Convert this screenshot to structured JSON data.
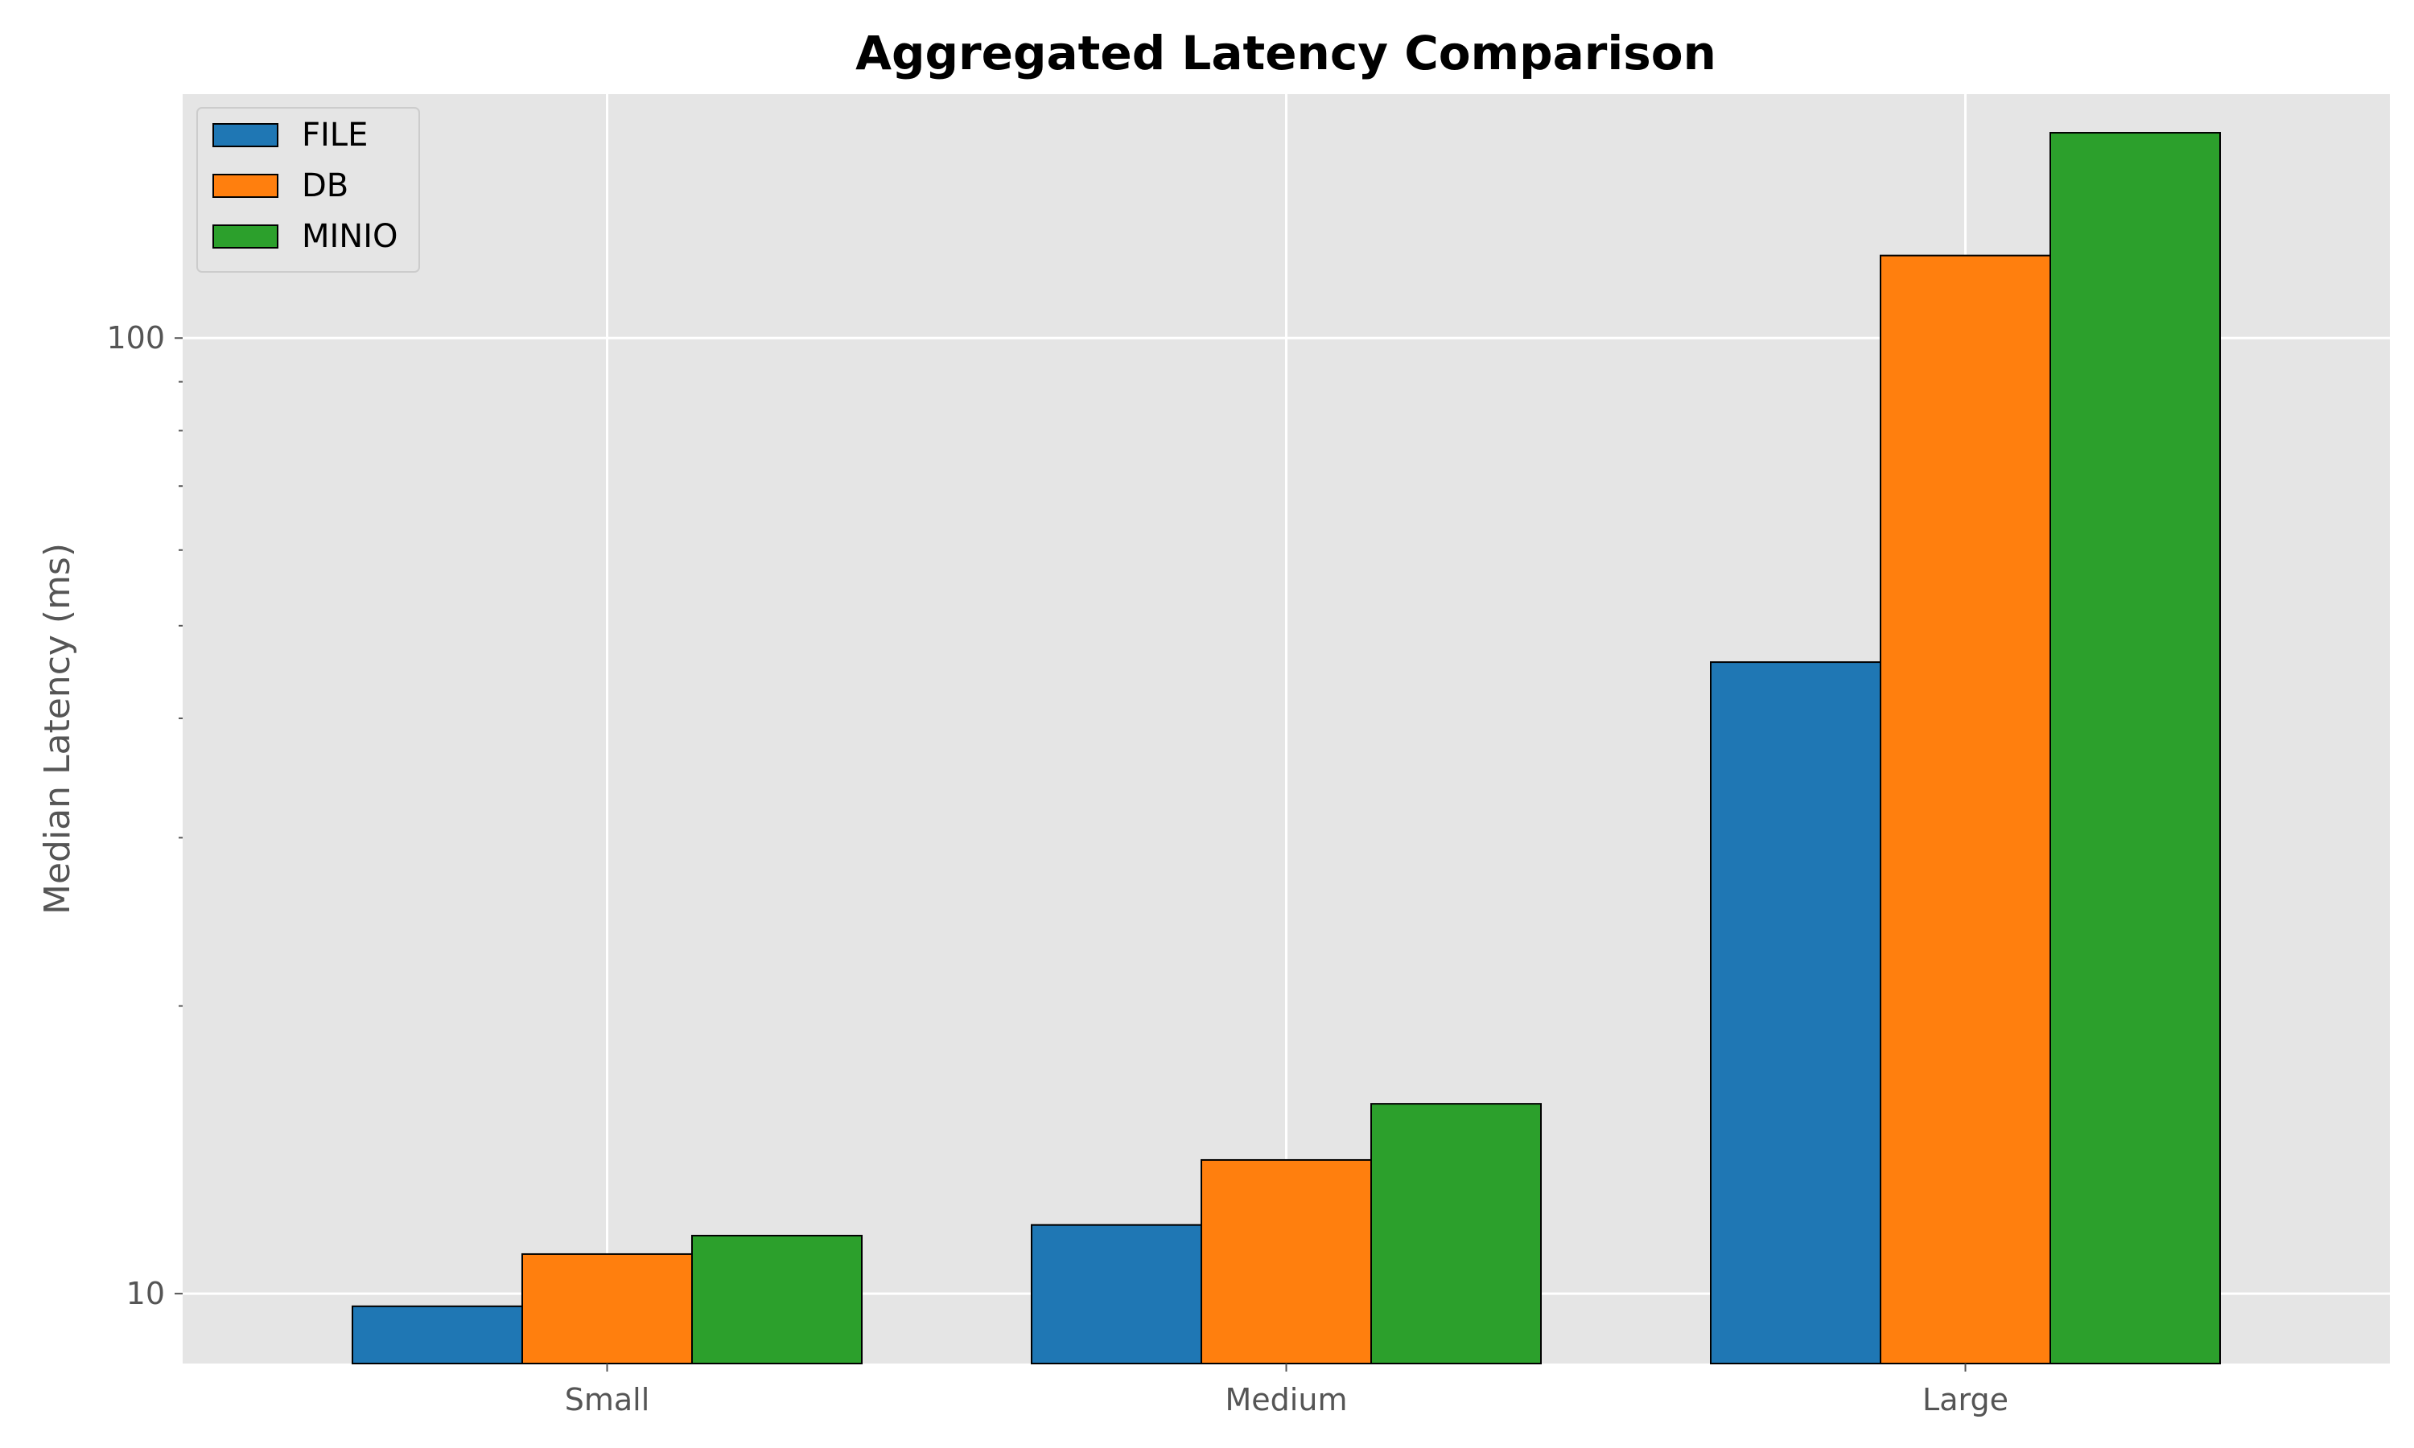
{
  "chart_data": {
    "type": "bar",
    "title": "Aggregated Latency Comparison",
    "xlabel": "",
    "ylabel": "Median Latency (ms)",
    "categories": [
      "Small",
      "Medium",
      "Large"
    ],
    "series": [
      {
        "name": "FILE",
        "values": [
          9.7,
          11.8,
          45.8
        ]
      },
      {
        "name": "DB",
        "values": [
          11.0,
          13.8,
          122.0
        ]
      },
      {
        "name": "MINIO",
        "values": [
          11.5,
          15.8,
          164.0
        ]
      }
    ],
    "y_scale": "log",
    "ylim": [
      8.45,
      180
    ],
    "yticks": [
      10,
      100
    ],
    "ytick_labels": [
      "10",
      "100"
    ],
    "minor_yticks": [
      20,
      30,
      40,
      50,
      60,
      70,
      80,
      90,
      200
    ],
    "grid": true,
    "legend_position": "top-left",
    "colors": {
      "FILE": "#1f77b4",
      "DB": "#ff7f0e",
      "MINIO": "#2ca02c",
      "plot_background": "#e5e5e5",
      "grid": "#ffffff"
    }
  }
}
